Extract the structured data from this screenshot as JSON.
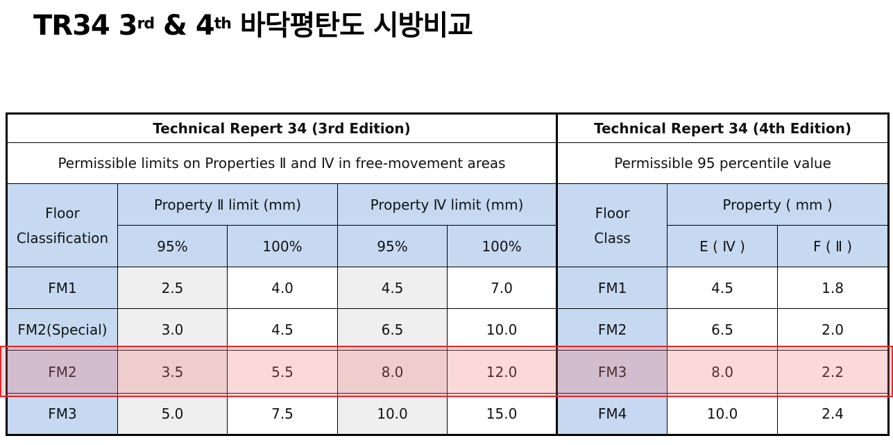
{
  "title": {
    "prefix": "TR34 3",
    "sup1": "rd",
    "middle": " & 4",
    "sup2": "th",
    "suffix": " 바닥평탄도 시방비교"
  },
  "table": {
    "left_title": "Technical Repert 34 (3rd Edition)",
    "right_title": "Technical Repert 34 (4th Edition)",
    "left_subtitle": "Permissible limits on Properties Ⅱ and Ⅳ in free-movement areas",
    "right_subtitle": "Permissible 95 percentile value",
    "left_floor_header": "Floor Classification",
    "prop2_header": "Property Ⅱ limit (mm)",
    "prop4_header": "Property Ⅳ limit (mm)",
    "right_floor_header": "Floor Class",
    "right_property_header": "Property ( mm )",
    "sub_headers": [
      "95%",
      "100%",
      "95%",
      "100%"
    ],
    "right_sub_headers": [
      "E ( Ⅳ )",
      "F ( Ⅱ )"
    ],
    "rows": [
      {
        "left_class": "FM1",
        "p2_95": "2.5",
        "p2_100": "4.0",
        "p4_95": "4.5",
        "p4_100": "7.0",
        "right_class": "FM1",
        "e": "4.5",
        "f": "1.8"
      },
      {
        "left_class": "FM2(Special)",
        "p2_95": "3.0",
        "p2_100": "4.5",
        "p4_95": "6.5",
        "p4_100": "10.0",
        "right_class": "FM2",
        "e": "6.5",
        "f": "2.0"
      },
      {
        "left_class": "FM2",
        "p2_95": "3.5",
        "p2_100": "5.5",
        "p4_95": "8.0",
        "p4_100": "12.0",
        "right_class": "FM3",
        "e": "8.0",
        "f": "2.2"
      },
      {
        "left_class": "FM3",
        "p2_95": "5.0",
        "p2_100": "7.5",
        "p4_95": "10.0",
        "p4_100": "15.0",
        "right_class": "FM4",
        "e": "10.0",
        "f": "2.4"
      }
    ],
    "highlighted_row": 2
  },
  "colors": {
    "header_blue": "#c6d9f1",
    "highlight_red": "#e8242a",
    "cell_grey": "#efefef"
  }
}
